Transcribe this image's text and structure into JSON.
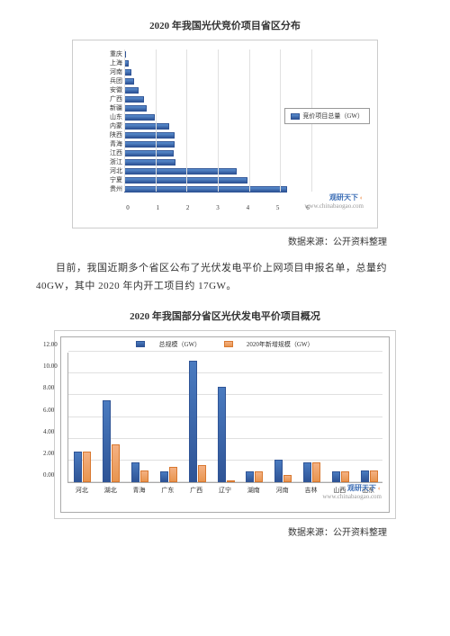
{
  "chart1": {
    "title": "2020 年我国光伏竞价项目省区分布",
    "type": "bar-horizontal",
    "categories": [
      "重庆",
      "上海",
      "河南",
      "兵团",
      "安徽",
      "广西",
      "新疆",
      "山东",
      "内蒙",
      "陕西",
      "青海",
      "江西",
      "浙江",
      "河北",
      "宁夏",
      "贵州"
    ],
    "values": [
      0.05,
      0.15,
      0.24,
      0.33,
      0.46,
      0.63,
      0.72,
      0.97,
      1.43,
      1.61,
      1.61,
      1.59,
      1.63,
      3.61,
      3.95,
      5.22
    ],
    "bar_color": "#2f5496",
    "xlim": [
      0,
      6
    ],
    "xtick_step": 1,
    "background_color": "#ffffff",
    "grid_color": "#e0e0e0",
    "legend_label": "竞价项目总量（GW）",
    "watermark_title": "观研天下",
    "watermark_url": "www.chinabaogao.com",
    "source": "数据来源：公开资料整理"
  },
  "body_text": "目前，我国近期多个省区公布了光伏发电平价上网项目申报名单，总量约 40GW，其中 2020 年内开工项目约 17GW。",
  "chart2": {
    "title": "2020 年我国部分省区光伏发电平价项目概况",
    "type": "bar-grouped",
    "categories": [
      "河北",
      "湖北",
      "青海",
      "广东",
      "广西",
      "辽宁",
      "湖南",
      "河南",
      "吉林",
      "山西",
      "山东"
    ],
    "series": [
      {
        "name": "总规模（GW）",
        "color": "#2f5496",
        "values": [
          2.85,
          7.55,
          1.83,
          1.0,
          11.15,
          8.78,
          1.0,
          2.05,
          1.85,
          1.0,
          1.05
        ]
      },
      {
        "name": "2020年新增规模（GW）",
        "color": "#e8954f",
        "values": [
          2.85,
          3.45,
          1.12,
          1.4,
          1.6,
          0.0,
          1.0,
          0.63,
          1.85,
          1.0,
          1.05
        ]
      }
    ],
    "ylim": [
      0,
      12
    ],
    "ytick_step": 2,
    "background_color": "#ffffff",
    "grid_color": "#e0e0e0",
    "watermark_title": "观研天下",
    "watermark_url": "www.chinabaogao.com",
    "source": "数据来源：公开资料整理"
  }
}
